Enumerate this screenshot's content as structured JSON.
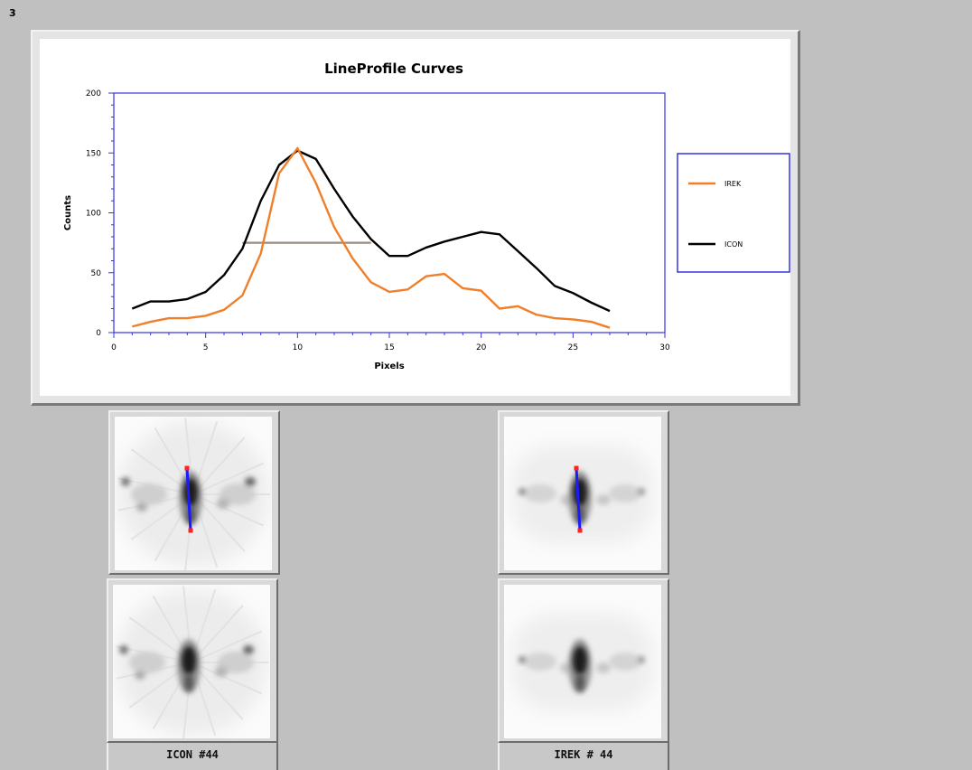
{
  "page_number": "3",
  "panels": {
    "left_caption": "ICON #44",
    "right_caption": "IREK # 44"
  },
  "colors": {
    "irek": "#f07f2a",
    "icon": "#000000",
    "axis": "#3333dd",
    "profile_line": "#1a1aff",
    "endpoint": "#ff2020"
  },
  "chart_data": {
    "type": "line",
    "title": "LineProfile Curves",
    "xlabel": "Pixels",
    "ylabel": "Counts",
    "xlim": [
      0,
      30
    ],
    "ylim": [
      0,
      200
    ],
    "xticks": [
      "0",
      "5",
      "10",
      "15",
      "20",
      "25",
      "30"
    ],
    "yticks": [
      "0",
      "50",
      "100",
      "150",
      "200"
    ],
    "legend_position": "right",
    "grid": false,
    "series": [
      {
        "name": "IREK",
        "color": "#f07f2a",
        "x": [
          1,
          2,
          3,
          4,
          5,
          6,
          7,
          8,
          9,
          10,
          11,
          12,
          13,
          14,
          15,
          16,
          17,
          18,
          19,
          20,
          21,
          22,
          23,
          24,
          25,
          26,
          27
        ],
        "y": [
          5,
          9,
          12,
          12,
          14,
          19,
          31,
          66,
          133,
          154,
          125,
          88,
          62,
          42,
          34,
          36,
          47,
          49,
          37,
          35,
          20,
          22,
          15,
          12,
          11,
          9,
          4
        ]
      },
      {
        "name": "ICON",
        "color": "#000000",
        "x": [
          1,
          2,
          3,
          4,
          5,
          6,
          7,
          8,
          9,
          10,
          11,
          12,
          13,
          14,
          15,
          16,
          17,
          18,
          19,
          20,
          21,
          22,
          23,
          24,
          25,
          26,
          27
        ],
        "y": [
          20,
          26,
          26,
          28,
          34,
          48,
          70,
          110,
          140,
          152,
          145,
          120,
          97,
          78,
          64,
          64,
          71,
          76,
          80,
          84,
          82,
          68,
          54,
          39,
          33,
          25,
          18
        ]
      }
    ],
    "annotations": [
      {
        "type": "fwhm_line",
        "x1": 7,
        "x2": 14,
        "y": 75
      }
    ]
  }
}
